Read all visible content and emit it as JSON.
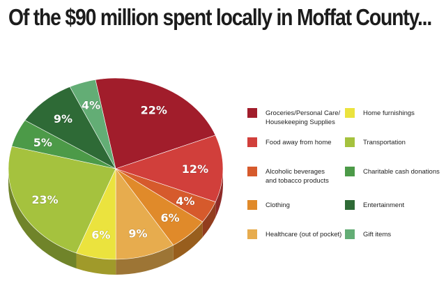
{
  "title": "Of the $90 million spent locally in Moffat County...",
  "chart_data": {
    "type": "pie",
    "style": "3d",
    "slices": [
      {
        "label": "Groceries/Personal Care/\nHousekeeping Supplies",
        "value": 22,
        "display": "22%",
        "color": "#a11d2b"
      },
      {
        "label": "Food away from home",
        "value": 12,
        "display": "12%",
        "color": "#d13f3b"
      },
      {
        "label": "Alcoholic beverages\nand tobacco products",
        "value": 4,
        "display": "4%",
        "color": "#d65a2c"
      },
      {
        "label": "Clothing",
        "value": 6,
        "display": "6%",
        "color": "#e08a2a"
      },
      {
        "label": "Healthcare (out of pocket)",
        "value": 9,
        "display": "9%",
        "color": "#e7ac4e"
      },
      {
        "label": "Home furnishings",
        "value": 6,
        "display": "6%",
        "color": "#ebe33e"
      },
      {
        "label": "Transportation",
        "value": 23,
        "display": "23%",
        "color": "#a5c23e"
      },
      {
        "label": "Charitable cash donations",
        "value": 5,
        "display": "5%",
        "color": "#4c9a48"
      },
      {
        "label": "Entertainment",
        "value": 9,
        "display": "9%",
        "color": "#2e6a36"
      },
      {
        "label": "Gift items",
        "value": 4,
        "display": "4%",
        "color": "#63ad75"
      }
    ],
    "legend": {
      "placement": "right",
      "columns": [
        [
          "Groceries/Personal Care/\nHousekeeping Supplies",
          "Food away from home",
          "Alcoholic beverages\nand tobacco products",
          "Clothing",
          "Healthcare (out of pocket)"
        ],
        [
          "Home furnishings",
          "Transportation",
          "Charitable cash donations",
          "Entertainment",
          "Gift items"
        ]
      ]
    }
  }
}
